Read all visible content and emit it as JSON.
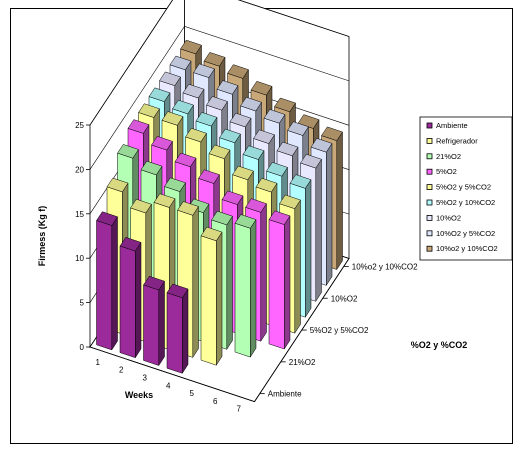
{
  "chart_data": {
    "type": "bar",
    "subtype": "3d-clustered",
    "title": "",
    "xlabel": "Weeks",
    "ylabel": "Firmess (Kg f)",
    "zlabel": "%O2 y %CO2",
    "ylim": [
      0,
      25
    ],
    "yticks": [
      "0",
      "5",
      "10",
      "15",
      "20",
      "25"
    ],
    "categories": [
      "1",
      "2",
      "3",
      "4",
      "5",
      "6",
      "7"
    ],
    "depth_labels": [
      "Ambiente",
      "21%O2",
      "5%O2 y 5%CO2",
      "10%O2",
      "10%o2 y 10%CO2"
    ],
    "legend_position": "right",
    "series": [
      {
        "name": "Ambiente",
        "color": "#9b2a9b",
        "values": [
          14,
          12,
          8.5,
          8.5,
          null,
          null,
          null
        ]
      },
      {
        "name": "Refrigerador",
        "color": "#ffff99",
        "values": [
          16,
          14.5,
          16,
          16,
          14,
          null,
          null
        ]
      },
      {
        "name": "21%O2",
        "color": "#b3ffb3",
        "values": [
          18,
          17,
          16,
          14.5,
          14,
          14.5,
          null
        ]
      },
      {
        "name": "5%O2",
        "color": "#ff66ff",
        "values": [
          19,
          18,
          17,
          16,
          14.5,
          14.5,
          14
        ]
      },
      {
        "name": "5%O2 y 5%CO2",
        "color": "#ffff99",
        "values": [
          19,
          19,
          18,
          17,
          15.5,
          15,
          14
        ]
      },
      {
        "name": "5%O2 y 10%CO2",
        "color": "#b3ffff",
        "values": [
          19,
          18.5,
          18,
          17,
          16,
          15,
          14.5
        ]
      },
      {
        "name": "10%O2",
        "color": "#e8e8ff",
        "values": [
          19,
          18.5,
          18,
          17,
          16,
          15.5,
          15
        ]
      },
      {
        "name": "10%O2 y 5%CO2",
        "color": "#e0e8ff",
        "values": [
          19,
          19,
          18,
          17,
          16.5,
          16,
          15
        ]
      },
      {
        "name": "10%o2 y 10%CO2",
        "color": "#c8a878",
        "values": [
          19,
          18.5,
          18,
          17,
          16,
          15,
          14.5
        ]
      }
    ]
  }
}
